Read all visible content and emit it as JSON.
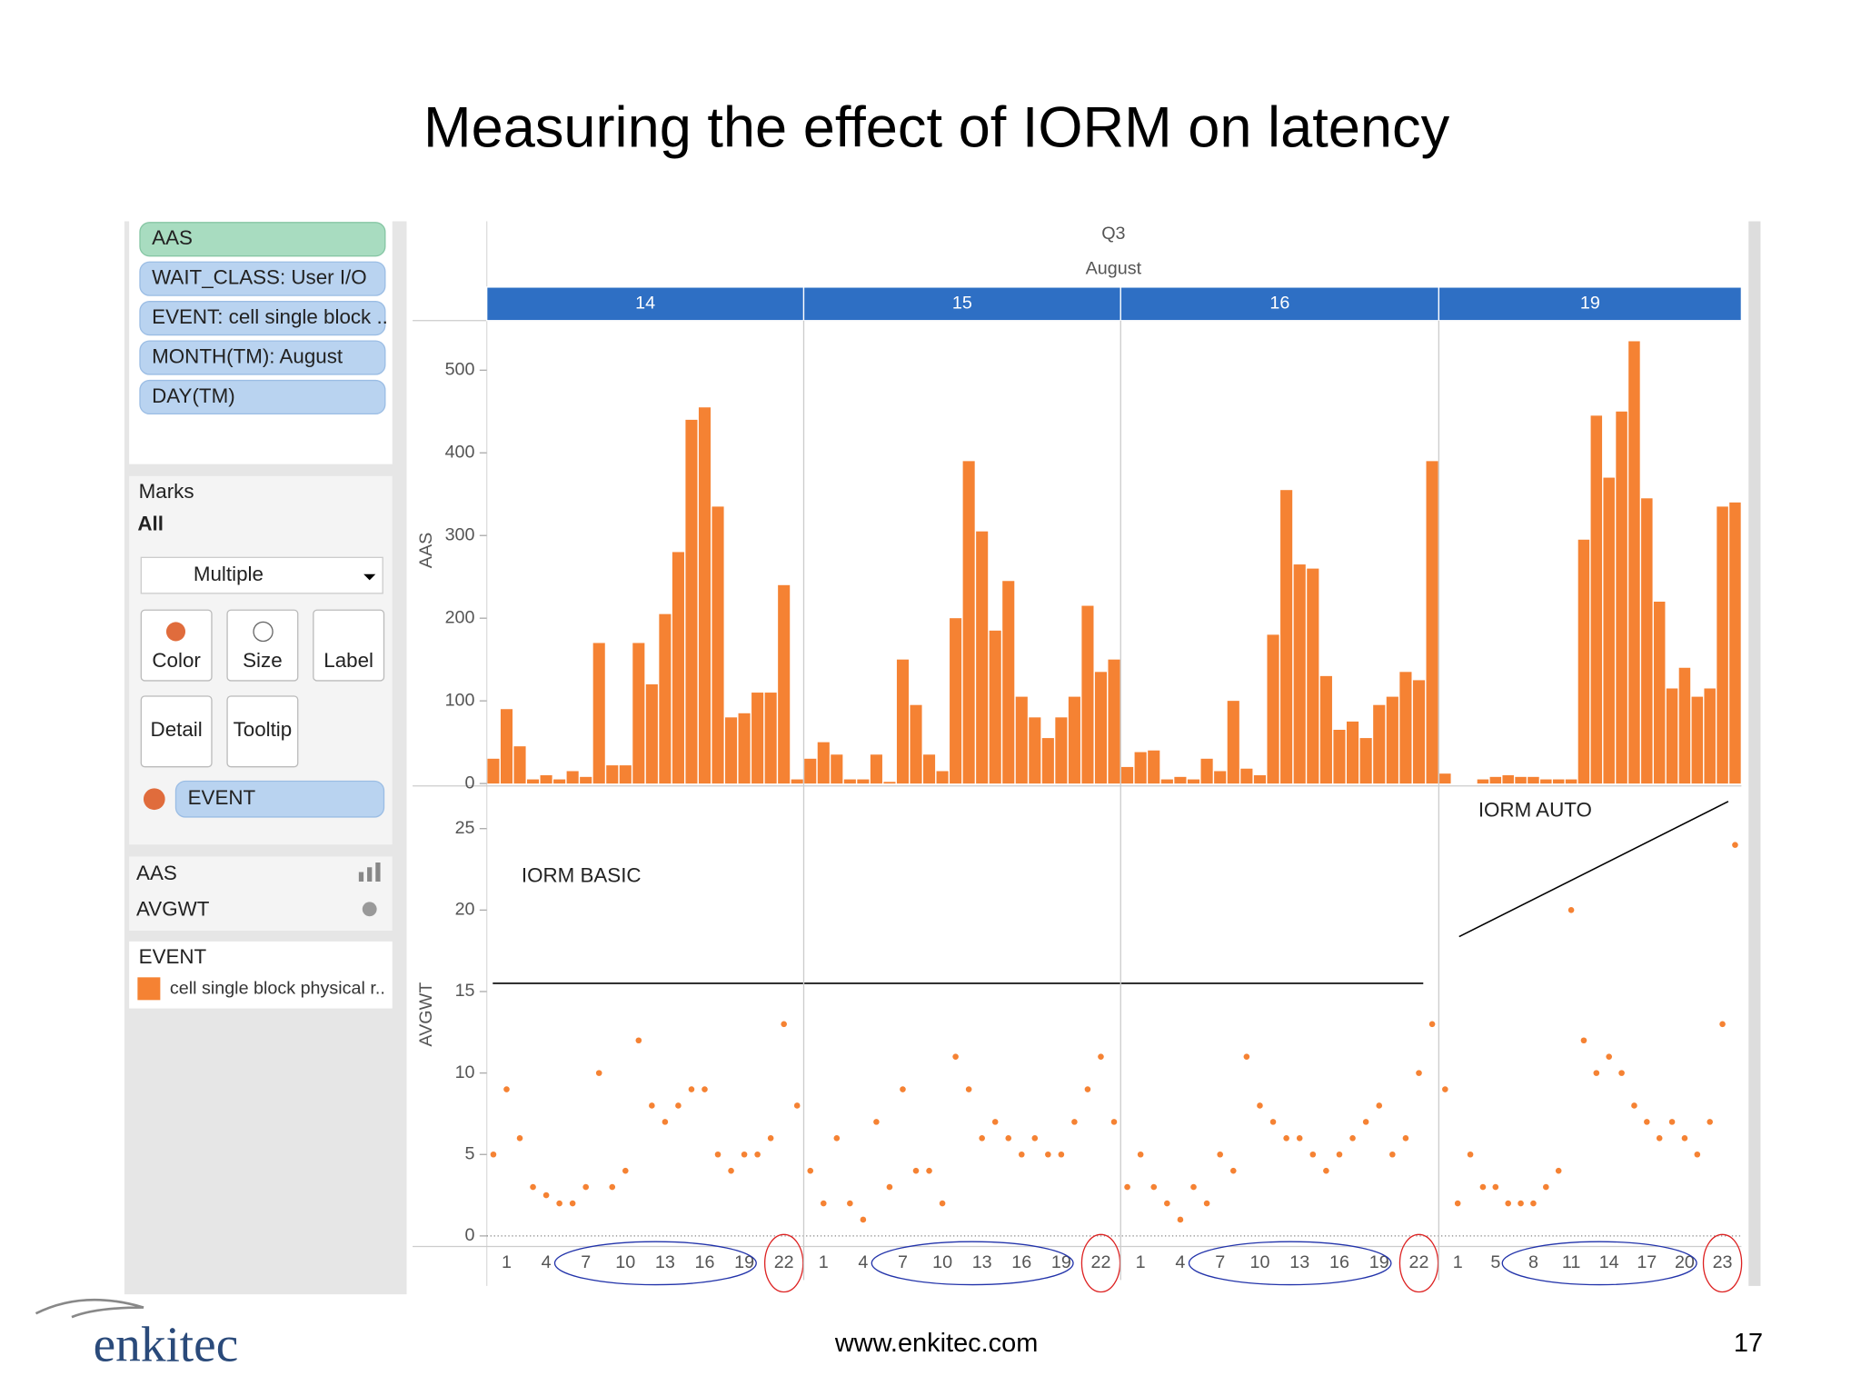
{
  "title": "Measuring the effect of IORM on latency",
  "shelf": {
    "filters": [
      "AAS",
      "WAIT_CLASS: User I/O",
      "EVENT: cell single block ..",
      "MONTH(TM): August",
      "DAY(TM)"
    ],
    "marks": {
      "title": "Marks",
      "tab": "All",
      "mark_type": "Multiple",
      "buttons": [
        "Color",
        "Size",
        "Label",
        "Detail",
        "Tooltip"
      ],
      "color_field": "EVENT",
      "measures": [
        "AAS",
        "AVGWT"
      ]
    },
    "legend": {
      "title": "EVENT",
      "item": "cell single block physical r.."
    }
  },
  "chart_data": [
    {
      "type": "bar",
      "header": "Q3",
      "subheader": "August",
      "ylabel": "AAS",
      "color": "#f58233",
      "ylim": [
        0,
        560
      ],
      "yticks": [
        0,
        100,
        200,
        300,
        400,
        500
      ],
      "panels": [
        {
          "name": "14",
          "categories": [
            null,
            "1",
            null,
            null,
            "4",
            null,
            null,
            "7",
            null,
            null,
            "10",
            null,
            null,
            "13",
            null,
            null,
            "16",
            null,
            null,
            "19",
            null,
            null,
            "22",
            null
          ],
          "values": [
            30,
            90,
            45,
            5,
            10,
            5,
            15,
            8,
            170,
            22,
            22,
            170,
            120,
            205,
            280,
            440,
            455,
            335,
            80,
            85,
            110,
            110,
            240,
            5
          ]
        },
        {
          "name": "15",
          "categories": [
            null,
            "1",
            null,
            null,
            "4",
            null,
            null,
            "7",
            null,
            null,
            "10",
            null,
            null,
            "13",
            null,
            null,
            "16",
            null,
            null,
            "19",
            null,
            null,
            "22",
            null
          ],
          "values": [
            30,
            50,
            35,
            5,
            5,
            35,
            2,
            150,
            95,
            35,
            15,
            200,
            390,
            305,
            185,
            245,
            105,
            80,
            55,
            80,
            105,
            215,
            135,
            150
          ]
        },
        {
          "name": "16",
          "categories": [
            null,
            "1",
            null,
            null,
            "4",
            null,
            null,
            "7",
            null,
            null,
            "10",
            null,
            null,
            "13",
            null,
            null,
            "16",
            null,
            null,
            "19",
            null,
            null,
            "22",
            null
          ],
          "values": [
            20,
            38,
            40,
            5,
            8,
            5,
            30,
            15,
            100,
            18,
            10,
            180,
            355,
            265,
            260,
            130,
            65,
            75,
            55,
            95,
            105,
            135,
            125,
            390
          ]
        },
        {
          "name": "19",
          "categories": [
            null,
            "1",
            null,
            null,
            "5",
            null,
            null,
            "8",
            null,
            null,
            "11",
            null,
            null,
            "14",
            null,
            null,
            "17",
            null,
            null,
            "20",
            null,
            null,
            "23",
            null
          ],
          "values": [
            12,
            0,
            0,
            5,
            8,
            10,
            8,
            8,
            5,
            5,
            5,
            295,
            445,
            370,
            450,
            535,
            345,
            220,
            115,
            140,
            105,
            115,
            335,
            340
          ]
        }
      ]
    },
    {
      "type": "scatter",
      "ylabel": "AVGWT",
      "color": "#f58233",
      "ylim": [
        -0.5,
        27.4
      ],
      "yticks": [
        0,
        5,
        10,
        15,
        20,
        25
      ],
      "annotations": [
        "IORM BASIC",
        "IORM AUTO"
      ],
      "panels": [
        {
          "values": [
            5,
            9,
            6,
            3,
            2.5,
            2,
            2,
            3,
            10,
            3,
            4,
            12,
            8,
            7,
            8,
            9,
            9,
            5,
            4,
            5,
            5,
            6,
            13,
            8
          ]
        },
        {
          "values": [
            4,
            2,
            6,
            2,
            1,
            7,
            3,
            9,
            4,
            4,
            2,
            11,
            9,
            6,
            7,
            6,
            5,
            6,
            5,
            5,
            7,
            9,
            11,
            7
          ]
        },
        {
          "values": [
            3,
            5,
            3,
            2,
            1,
            3,
            2,
            5,
            4,
            11,
            8,
            7,
            6,
            6,
            5,
            4,
            5,
            6,
            7,
            8,
            5,
            6,
            10,
            13
          ]
        },
        {
          "values": [
            9,
            2,
            5,
            3,
            3,
            2,
            2,
            2,
            3,
            4,
            20,
            12,
            10,
            11,
            10,
            8,
            7,
            6,
            7,
            6,
            5,
            7,
            13,
            24
          ]
        }
      ]
    }
  ],
  "footer": {
    "logo": "enkitec",
    "url": "www.enkitec.com",
    "page": "17"
  }
}
